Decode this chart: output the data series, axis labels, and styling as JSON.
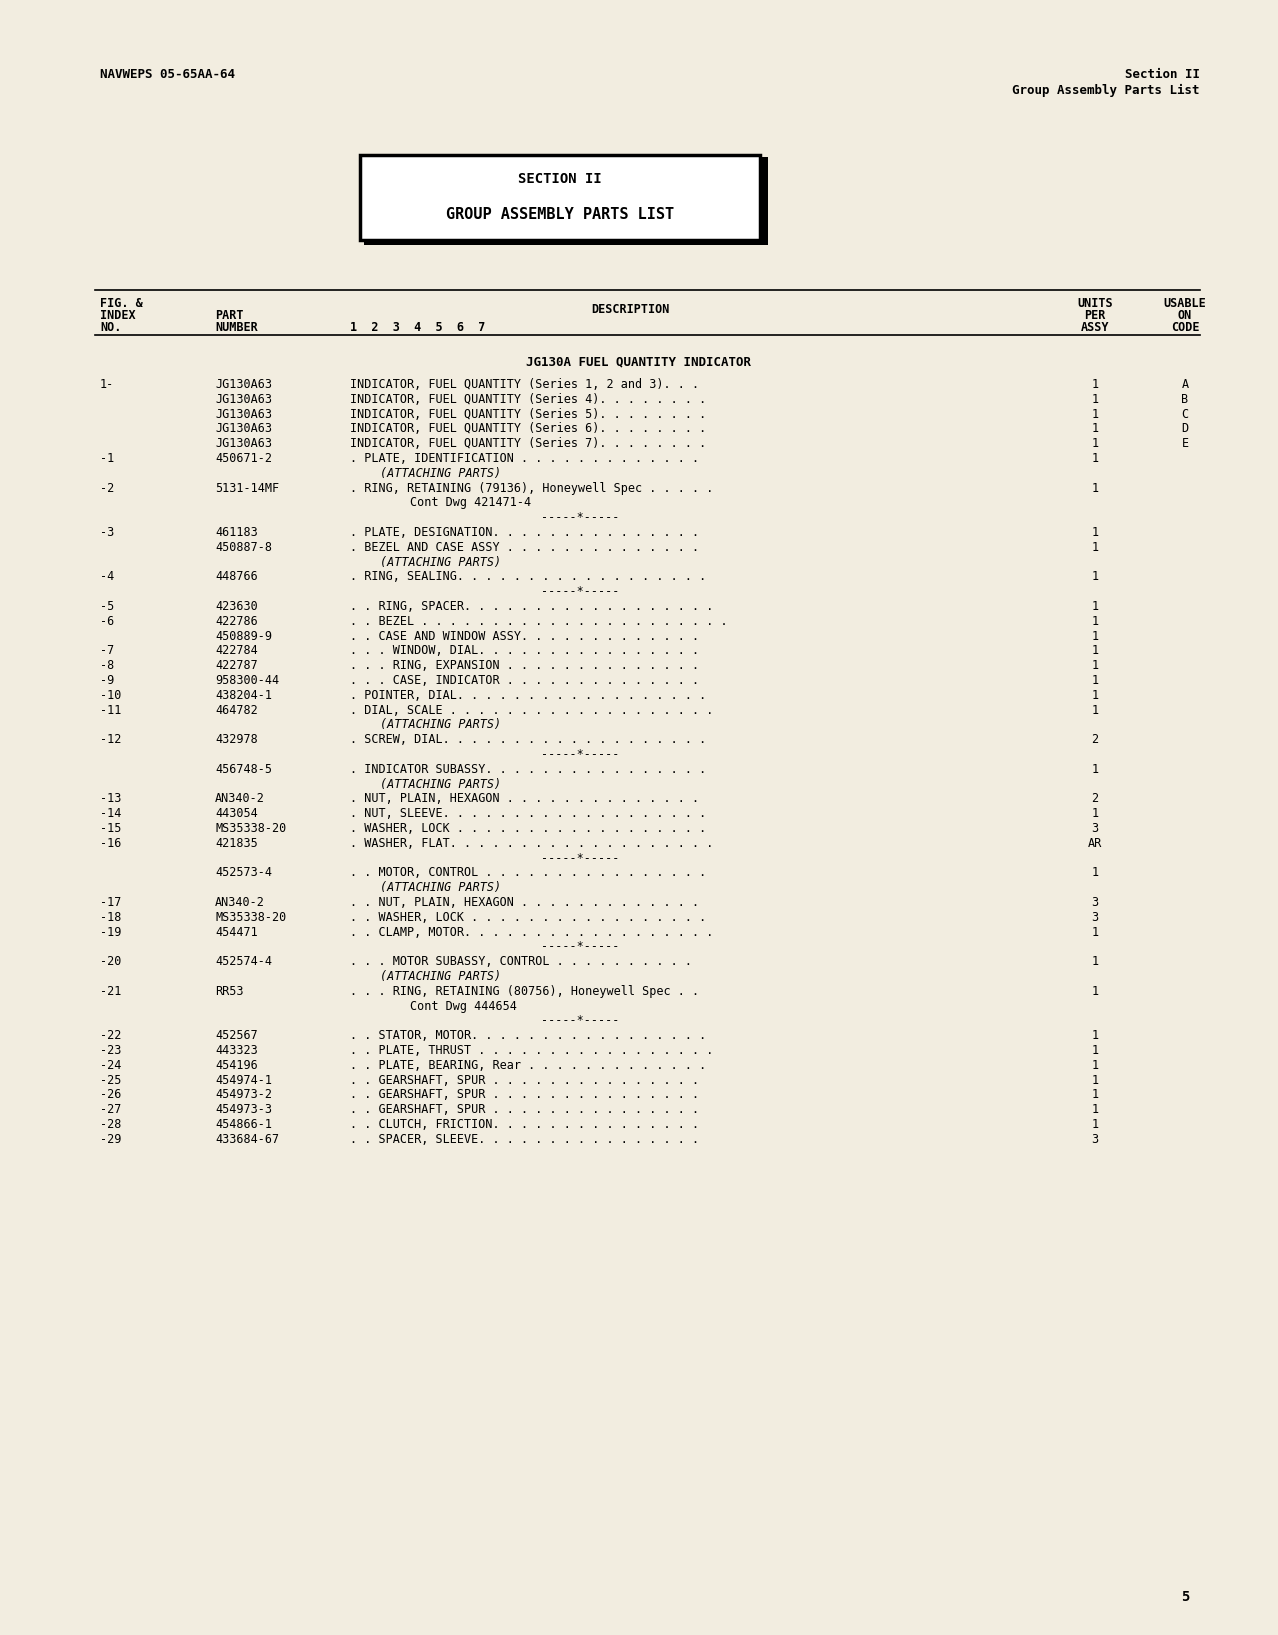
{
  "bg_color": "#f2ede0",
  "page_num": "5",
  "header_left": "NAVWEPS 05-65AA-64",
  "header_right_line1": "Section II",
  "header_right_line2": "Group Assembly Parts List",
  "section_box_line1": "SECTION II",
  "section_box_line2": "GROUP ASSEMBLY PARTS LIST",
  "section_title": "JG130A FUEL QUANTITY INDICATOR",
  "rows": [
    {
      "fig": "1-",
      "part": "JG130A63",
      "desc": "INDICATOR, FUEL QUANTITY (Series 1, 2 and 3). . .",
      "units": "1",
      "code": "A"
    },
    {
      "fig": "",
      "part": "JG130A63",
      "desc": "INDICATOR, FUEL QUANTITY (Series 4). . . . . . . .",
      "units": "1",
      "code": "B"
    },
    {
      "fig": "",
      "part": "JG130A63",
      "desc": "INDICATOR, FUEL QUANTITY (Series 5). . . . . . . .",
      "units": "1",
      "code": "C"
    },
    {
      "fig": "",
      "part": "JG130A63",
      "desc": "INDICATOR, FUEL QUANTITY (Series 6). . . . . . . .",
      "units": "1",
      "code": "D"
    },
    {
      "fig": "",
      "part": "JG130A63",
      "desc": "INDICATOR, FUEL QUANTITY (Series 7). . . . . . . .",
      "units": "1",
      "code": "E"
    },
    {
      "fig": "-1",
      "part": "450671-2",
      "desc": ". PLATE, IDENTIFICATION . . . . . . . . . . . . .",
      "units": "1",
      "code": ""
    },
    {
      "fig": "",
      "part": "",
      "desc": "(ATTACHING PARTS)",
      "units": "",
      "code": "",
      "italic": true
    },
    {
      "fig": "-2",
      "part": "5131-14MF",
      "desc": ". RING, RETAINING (79136), Honeywell Spec . . . . .",
      "units": "1",
      "code": ""
    },
    {
      "fig": "",
      "part": "",
      "desc": "Cont Dwg 421471-4",
      "units": "",
      "code": "",
      "cont": true
    },
    {
      "fig": "",
      "part": "",
      "desc": "-----*-----",
      "units": "",
      "code": "",
      "sep": true
    },
    {
      "fig": "-3",
      "part": "461183",
      "desc": ". PLATE, DESIGNATION. . . . . . . . . . . . . . .",
      "units": "1",
      "code": ""
    },
    {
      "fig": "",
      "part": "450887-8",
      "desc": ". BEZEL AND CASE ASSY . . . . . . . . . . . . . .",
      "units": "1",
      "code": ""
    },
    {
      "fig": "",
      "part": "",
      "desc": "(ATTACHING PARTS)",
      "units": "",
      "code": "",
      "italic": true
    },
    {
      "fig": "-4",
      "part": "448766",
      "desc": ". RING, SEALING. . . . . . . . . . . . . . . . . .",
      "units": "1",
      "code": ""
    },
    {
      "fig": "",
      "part": "",
      "desc": "-----*-----",
      "units": "",
      "code": "",
      "sep": true
    },
    {
      "fig": "-5",
      "part": "423630",
      "desc": ". . RING, SPACER. . . . . . . . . . . . . . . . . .",
      "units": "1",
      "code": ""
    },
    {
      "fig": "-6",
      "part": "422786",
      "desc": ". . BEZEL . . . . . . . . . . . . . . . . . . . . . .",
      "units": "1",
      "code": ""
    },
    {
      "fig": "",
      "part": "450889-9",
      "desc": ". . CASE AND WINDOW ASSY. . . . . . . . . . . . .",
      "units": "1",
      "code": ""
    },
    {
      "fig": "-7",
      "part": "422784",
      "desc": ". . . WINDOW, DIAL. . . . . . . . . . . . . . . .",
      "units": "1",
      "code": ""
    },
    {
      "fig": "-8",
      "part": "422787",
      "desc": ". . . RING, EXPANSION . . . . . . . . . . . . . .",
      "units": "1",
      "code": ""
    },
    {
      "fig": "-9",
      "part": "958300-44",
      "desc": ". . . CASE, INDICATOR . . . . . . . . . . . . . .",
      "units": "1",
      "code": ""
    },
    {
      "fig": "-10",
      "part": "438204-1",
      "desc": ". POINTER, DIAL. . . . . . . . . . . . . . . . . .",
      "units": "1",
      "code": ""
    },
    {
      "fig": "-11",
      "part": "464782",
      "desc": ". DIAL, SCALE . . . . . . . . . . . . . . . . . . .",
      "units": "1",
      "code": ""
    },
    {
      "fig": "",
      "part": "",
      "desc": "(ATTACHING PARTS)",
      "units": "",
      "code": "",
      "italic": true
    },
    {
      "fig": "-12",
      "part": "432978",
      "desc": ". SCREW, DIAL. . . . . . . . . . . . . . . . . . .",
      "units": "2",
      "code": ""
    },
    {
      "fig": "",
      "part": "",
      "desc": "-----*-----",
      "units": "",
      "code": "",
      "sep": true
    },
    {
      "fig": "",
      "part": "456748-5",
      "desc": ". INDICATOR SUBASSY. . . . . . . . . . . . . . . .",
      "units": "1",
      "code": ""
    },
    {
      "fig": "",
      "part": "",
      "desc": "(ATTACHING PARTS)",
      "units": "",
      "code": "",
      "italic": true
    },
    {
      "fig": "-13",
      "part": "AN340-2",
      "desc": ". NUT, PLAIN, HEXAGON . . . . . . . . . . . . . .",
      "units": "2",
      "code": ""
    },
    {
      "fig": "-14",
      "part": "443054",
      "desc": ". NUT, SLEEVE. . . . . . . . . . . . . . . . . . .",
      "units": "1",
      "code": ""
    },
    {
      "fig": "-15",
      "part": "MS35338-20",
      "desc": ". WASHER, LOCK . . . . . . . . . . . . . . . . . .",
      "units": "3",
      "code": ""
    },
    {
      "fig": "-16",
      "part": "421835",
      "desc": ". WASHER, FLAT. . . . . . . . . . . . . . . . . . .",
      "units": "AR",
      "code": ""
    },
    {
      "fig": "",
      "part": "",
      "desc": "-----*-----",
      "units": "",
      "code": "",
      "sep": true
    },
    {
      "fig": "",
      "part": "452573-4",
      "desc": ". . MOTOR, CONTROL . . . . . . . . . . . . . . . .",
      "units": "1",
      "code": ""
    },
    {
      "fig": "",
      "part": "",
      "desc": "(ATTACHING PARTS)",
      "units": "",
      "code": "",
      "italic": true
    },
    {
      "fig": "-17",
      "part": "AN340-2",
      "desc": ". . NUT, PLAIN, HEXAGON . . . . . . . . . . . . .",
      "units": "3",
      "code": ""
    },
    {
      "fig": "-18",
      "part": "MS35338-20",
      "desc": ". . WASHER, LOCK . . . . . . . . . . . . . . . . .",
      "units": "3",
      "code": ""
    },
    {
      "fig": "-19",
      "part": "454471",
      "desc": ". . CLAMP, MOTOR. . . . . . . . . . . . . . . . . .",
      "units": "1",
      "code": ""
    },
    {
      "fig": "",
      "part": "",
      "desc": "-----*-----",
      "units": "",
      "code": "",
      "sep": true
    },
    {
      "fig": "-20",
      "part": "452574-4",
      "desc": ". . . MOTOR SUBASSY, CONTROL . . . . . . . . . .",
      "units": "1",
      "code": ""
    },
    {
      "fig": "",
      "part": "",
      "desc": "(ATTACHING PARTS)",
      "units": "",
      "code": "",
      "italic": true
    },
    {
      "fig": "-21",
      "part": "RR53",
      "desc": ". . . RING, RETAINING (80756), Honeywell Spec . .",
      "units": "1",
      "code": ""
    },
    {
      "fig": "",
      "part": "",
      "desc": "Cont Dwg 444654",
      "units": "",
      "code": "",
      "cont": true
    },
    {
      "fig": "",
      "part": "",
      "desc": "-----*-----",
      "units": "",
      "code": "",
      "sep": true
    },
    {
      "fig": "-22",
      "part": "452567",
      "desc": ". . STATOR, MOTOR. . . . . . . . . . . . . . . . .",
      "units": "1",
      "code": ""
    },
    {
      "fig": "-23",
      "part": "443323",
      "desc": ". . PLATE, THRUST . . . . . . . . . . . . . . . . .",
      "units": "1",
      "code": ""
    },
    {
      "fig": "-24",
      "part": "454196",
      "desc": ". . PLATE, BEARING, Rear . . . . . . . . . . . . .",
      "units": "1",
      "code": ""
    },
    {
      "fig": "-25",
      "part": "454974-1",
      "desc": ". . GEARSHAFT, SPUR . . . . . . . . . . . . . . .",
      "units": "1",
      "code": ""
    },
    {
      "fig": "-26",
      "part": "454973-2",
      "desc": ". . GEARSHAFT, SPUR . . . . . . . . . . . . . . .",
      "units": "1",
      "code": ""
    },
    {
      "fig": "-27",
      "part": "454973-3",
      "desc": ". . GEARSHAFT, SPUR . . . . . . . . . . . . . . .",
      "units": "1",
      "code": ""
    },
    {
      "fig": "-28",
      "part": "454866-1",
      "desc": ". . CLUTCH, FRICTION. . . . . . . . . . . . . . .",
      "units": "1",
      "code": ""
    },
    {
      "fig": "-29",
      "part": "433684-67",
      "desc": ". . SPACER, SLEEVE. . . . . . . . . . . . . . . .",
      "units": "3",
      "code": ""
    }
  ]
}
